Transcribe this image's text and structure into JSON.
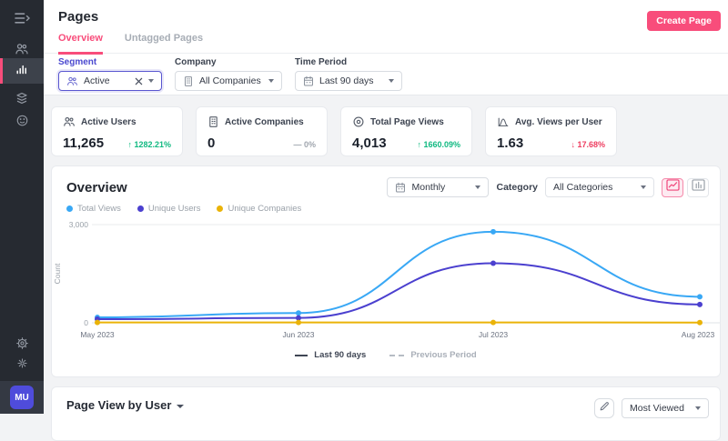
{
  "colors": {
    "accent_pink": "#f84d7b",
    "green": "#10b981",
    "red": "#ee3d60",
    "indigo_focus": "#5a57d0",
    "avatar_bg": "#4f4cdb"
  },
  "sidebar": {
    "avatar": "MU",
    "icons": [
      "menu-expand",
      "users",
      "analytics",
      "layers",
      "face",
      "settings",
      "preferences"
    ]
  },
  "header": {
    "title": "Pages",
    "create_button": "Create Page"
  },
  "tabs": {
    "overview": "Overview",
    "untagged": "Untagged Pages"
  },
  "filters": {
    "segment": {
      "label": "Segment",
      "value": "Active"
    },
    "company": {
      "label": "Company",
      "value": "All Companies"
    },
    "time_period": {
      "label": "Time Period",
      "value": "Last 90 days"
    }
  },
  "stats": [
    {
      "label": "Active Users",
      "value": "11,265",
      "arrow": "↑",
      "delta": "1282.21%",
      "direction": "up"
    },
    {
      "label": "Active Companies",
      "value": "0",
      "arrow": "—",
      "delta": "0%",
      "direction": "flat"
    },
    {
      "label": "Total Page Views",
      "value": "4,013",
      "arrow": "↑",
      "delta": "1660.09%",
      "direction": "up"
    },
    {
      "label": "Avg. Views per User",
      "value": "1.63",
      "arrow": "↓",
      "delta": "17.68%",
      "direction": "down"
    }
  ],
  "overview": {
    "title": "Overview",
    "granularity_value": "Monthly",
    "category_label": "Category",
    "category_value": "All Categories",
    "period_legend": [
      {
        "label": "Last 90 days",
        "style": "solid"
      },
      {
        "label": "Previous Period",
        "style": "dashed"
      }
    ]
  },
  "chart_data": {
    "type": "line",
    "x": [
      "May 2023",
      "Jun 2023",
      "Jul 2023",
      "Aug 2023"
    ],
    "series": [
      {
        "name": "Total Views",
        "color": "#39a8f5",
        "values": [
          165,
          300,
          2780,
          795
        ]
      },
      {
        "name": "Unique Users",
        "color": "#4b40cf",
        "values": [
          110,
          150,
          1820,
          560
        ]
      },
      {
        "name": "Unique Companies",
        "color": "#eab308",
        "values": [
          10,
          12,
          10,
          8
        ]
      }
    ],
    "ylabel": "Count",
    "ylim": [
      0,
      3000
    ],
    "yticks": [
      {
        "value": 0,
        "label": "0"
      },
      {
        "value": 3000,
        "label": "3,000"
      }
    ],
    "grid": "top-gridline-only",
    "legend_position": "top-left"
  },
  "page_view": {
    "title": "Page View by User",
    "sort_value": "Most Viewed"
  }
}
